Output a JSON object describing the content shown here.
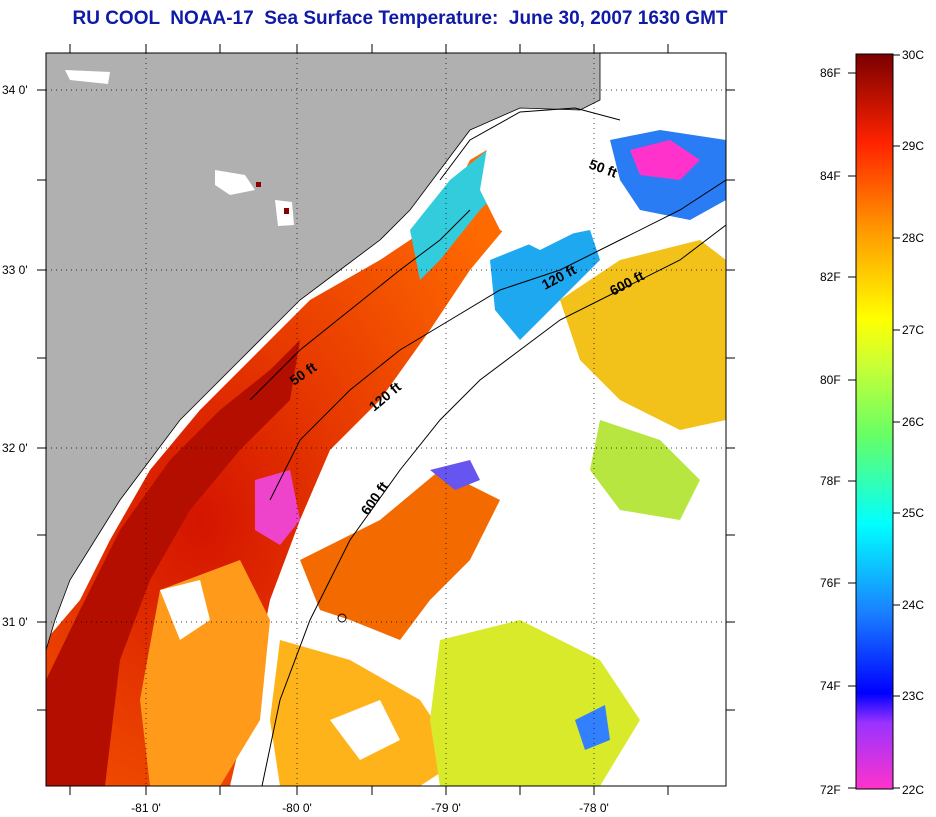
{
  "title": "RU COOL  NOAA-17  Sea Surface Temperature:  June 30, 2007 1630 GMT",
  "map": {
    "lat_labels": [
      "34 0'",
      "33 0'",
      "32 0'",
      "31 0'"
    ],
    "lon_labels": [
      "-81 0'",
      "-80 0'",
      "-79 0'",
      "-78 0'"
    ],
    "contour_labels": {
      "north_50": "50 ft",
      "north_120": "120 ft",
      "north_600": "600 ft",
      "south_50": "50 ft",
      "south_120": "120 ft",
      "south_600": "600 ft"
    },
    "colors": {
      "land": "#b0b0b0",
      "cloud": "#ffffff",
      "warm": "#cc1a00",
      "hot": "#8a0000",
      "orange": "#ff8a00",
      "yellow": "#f5e500",
      "green": "#9be03a",
      "cyan": "#22e0e0",
      "blue": "#1a66ff",
      "magenta": "#ff33cc"
    }
  },
  "colorbar": {
    "fahrenheit_labels": [
      "86F",
      "84F",
      "82F",
      "80F",
      "78F",
      "76F",
      "74F",
      "72F"
    ],
    "celsius_labels": [
      "30C",
      "29C",
      "28C",
      "27C",
      "26C",
      "25C",
      "24C",
      "23C",
      "22C"
    ]
  }
}
